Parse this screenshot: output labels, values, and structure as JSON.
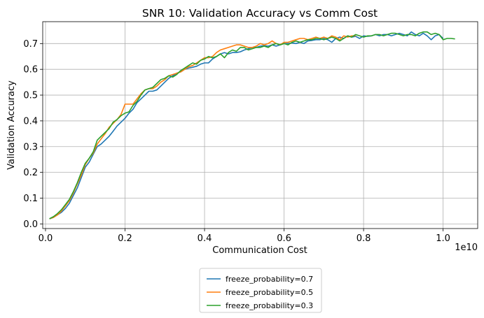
{
  "chart_data": {
    "type": "line",
    "title": "SNR 10: Validation Accuracy vs Comm Cost",
    "xlabel": "Communication Cost",
    "ylabel": "Validation Accuracy",
    "x_offset_label": "1e10",
    "x_scale": 10000000000,
    "xlim": [
      -70000000,
      10870000000
    ],
    "ylim": [
      -0.018,
      0.785
    ],
    "x_ticks": [
      0,
      2000000000,
      4000000000,
      6000000000,
      8000000000,
      10000000000
    ],
    "x_tick_labels": [
      "0.0",
      "0.2",
      "0.4",
      "0.6",
      "0.8",
      "1.0"
    ],
    "y_ticks": [
      0.0,
      0.1,
      0.2,
      0.3,
      0.4,
      0.5,
      0.6,
      0.7
    ],
    "y_tick_labels": [
      "0.0",
      "0.1",
      "0.2",
      "0.3",
      "0.4",
      "0.5",
      "0.6",
      "0.7"
    ],
    "grid": true,
    "legend_position": "below-center",
    "series": [
      {
        "name": "freeze_probability=0.7",
        "color": "#1f77b4",
        "points": [
          [
            100000000,
            0.02
          ],
          [
            200000000,
            0.025
          ],
          [
            300000000,
            0.035
          ],
          [
            400000000,
            0.045
          ],
          [
            500000000,
            0.06
          ],
          [
            600000000,
            0.08
          ],
          [
            700000000,
            0.11
          ],
          [
            800000000,
            0.14
          ],
          [
            900000000,
            0.18
          ],
          [
            1000000000,
            0.22
          ],
          [
            1100000000,
            0.24
          ],
          [
            1200000000,
            0.27
          ],
          [
            1300000000,
            0.3
          ],
          [
            1400000000,
            0.31
          ],
          [
            1500000000,
            0.325
          ],
          [
            1600000000,
            0.34
          ],
          [
            1700000000,
            0.36
          ],
          [
            1800000000,
            0.38
          ],
          [
            1900000000,
            0.395
          ],
          [
            2000000000,
            0.41
          ],
          [
            2100000000,
            0.43
          ],
          [
            2200000000,
            0.445
          ],
          [
            2300000000,
            0.47
          ],
          [
            2400000000,
            0.485
          ],
          [
            2500000000,
            0.5
          ],
          [
            2600000000,
            0.515
          ],
          [
            2700000000,
            0.515
          ],
          [
            2800000000,
            0.52
          ],
          [
            2900000000,
            0.535
          ],
          [
            3000000000,
            0.55
          ],
          [
            3100000000,
            0.565
          ],
          [
            3200000000,
            0.575
          ],
          [
            3300000000,
            0.585
          ],
          [
            3400000000,
            0.59
          ],
          [
            3500000000,
            0.6
          ],
          [
            3600000000,
            0.605
          ],
          [
            3700000000,
            0.608
          ],
          [
            3800000000,
            0.612
          ],
          [
            3900000000,
            0.62
          ],
          [
            4000000000,
            0.625
          ],
          [
            4100000000,
            0.625
          ],
          [
            4200000000,
            0.64
          ],
          [
            4300000000,
            0.65
          ],
          [
            4400000000,
            0.66
          ],
          [
            4500000000,
            0.665
          ],
          [
            4600000000,
            0.66
          ],
          [
            4700000000,
            0.665
          ],
          [
            4800000000,
            0.665
          ],
          [
            4900000000,
            0.668
          ],
          [
            5000000000,
            0.675
          ],
          [
            5100000000,
            0.68
          ],
          [
            5200000000,
            0.685
          ],
          [
            5300000000,
            0.685
          ],
          [
            5400000000,
            0.69
          ],
          [
            5500000000,
            0.692
          ],
          [
            5600000000,
            0.69
          ],
          [
            5700000000,
            0.695
          ],
          [
            5800000000,
            0.69
          ],
          [
            5900000000,
            0.695
          ],
          [
            6000000000,
            0.7
          ],
          [
            6100000000,
            0.7
          ],
          [
            6200000000,
            0.702
          ],
          [
            6300000000,
            0.7
          ],
          [
            6400000000,
            0.705
          ],
          [
            6500000000,
            0.7
          ],
          [
            6600000000,
            0.71
          ],
          [
            6700000000,
            0.712
          ],
          [
            6800000000,
            0.715
          ],
          [
            6900000000,
            0.715
          ],
          [
            7000000000,
            0.72
          ],
          [
            7100000000,
            0.715
          ],
          [
            7200000000,
            0.705
          ],
          [
            7300000000,
            0.72
          ],
          [
            7400000000,
            0.725
          ],
          [
            7500000000,
            0.72
          ],
          [
            7600000000,
            0.73
          ],
          [
            7700000000,
            0.725
          ],
          [
            7800000000,
            0.728
          ],
          [
            7900000000,
            0.72
          ],
          [
            8000000000,
            0.73
          ],
          [
            8100000000,
            0.728
          ],
          [
            8200000000,
            0.73
          ],
          [
            8300000000,
            0.735
          ],
          [
            8400000000,
            0.73
          ],
          [
            8500000000,
            0.735
          ],
          [
            8600000000,
            0.735
          ],
          [
            8700000000,
            0.73
          ],
          [
            8800000000,
            0.735
          ],
          [
            8900000000,
            0.74
          ],
          [
            9000000000,
            0.735
          ],
          [
            9100000000,
            0.73
          ],
          [
            9200000000,
            0.745
          ],
          [
            9300000000,
            0.735
          ],
          [
            9400000000,
            0.73
          ],
          [
            9500000000,
            0.74
          ],
          [
            9600000000,
            0.73
          ],
          [
            9700000000,
            0.715
          ],
          [
            9800000000,
            0.73
          ],
          [
            9900000000,
            0.735
          ],
          [
            10000000000,
            0.72
          ]
        ]
      },
      {
        "name": "freeze_probability=0.5",
        "color": "#ff7f0e",
        "points": [
          [
            100000000,
            0.02
          ],
          [
            200000000,
            0.025
          ],
          [
            300000000,
            0.035
          ],
          [
            400000000,
            0.05
          ],
          [
            500000000,
            0.07
          ],
          [
            600000000,
            0.09
          ],
          [
            700000000,
            0.12
          ],
          [
            800000000,
            0.155
          ],
          [
            900000000,
            0.19
          ],
          [
            1000000000,
            0.23
          ],
          [
            1100000000,
            0.255
          ],
          [
            1200000000,
            0.275
          ],
          [
            1300000000,
            0.31
          ],
          [
            1400000000,
            0.33
          ],
          [
            1500000000,
            0.35
          ],
          [
            1600000000,
            0.375
          ],
          [
            1700000000,
            0.39
          ],
          [
            1800000000,
            0.405
          ],
          [
            1900000000,
            0.425
          ],
          [
            2000000000,
            0.465
          ],
          [
            2100000000,
            0.465
          ],
          [
            2200000000,
            0.465
          ],
          [
            2300000000,
            0.485
          ],
          [
            2400000000,
            0.505
          ],
          [
            2500000000,
            0.52
          ],
          [
            2600000000,
            0.525
          ],
          [
            2700000000,
            0.525
          ],
          [
            2800000000,
            0.535
          ],
          [
            2900000000,
            0.55
          ],
          [
            3000000000,
            0.56
          ],
          [
            3100000000,
            0.575
          ],
          [
            3200000000,
            0.58
          ],
          [
            3300000000,
            0.585
          ],
          [
            3400000000,
            0.59
          ],
          [
            3500000000,
            0.6
          ],
          [
            3600000000,
            0.61
          ],
          [
            3700000000,
            0.615
          ],
          [
            3800000000,
            0.625
          ],
          [
            3900000000,
            0.635
          ],
          [
            4000000000,
            0.645
          ],
          [
            4100000000,
            0.645
          ],
          [
            4200000000,
            0.65
          ],
          [
            4300000000,
            0.665
          ],
          [
            4400000000,
            0.675
          ],
          [
            4500000000,
            0.68
          ],
          [
            4600000000,
            0.685
          ],
          [
            4700000000,
            0.69
          ],
          [
            4800000000,
            0.695
          ],
          [
            4900000000,
            0.695
          ],
          [
            5000000000,
            0.69
          ],
          [
            5100000000,
            0.685
          ],
          [
            5200000000,
            0.685
          ],
          [
            5300000000,
            0.69
          ],
          [
            5400000000,
            0.7
          ],
          [
            5500000000,
            0.695
          ],
          [
            5600000000,
            0.7
          ],
          [
            5700000000,
            0.71
          ],
          [
            5800000000,
            0.7
          ],
          [
            5900000000,
            0.695
          ],
          [
            6000000000,
            0.705
          ],
          [
            6100000000,
            0.705
          ],
          [
            6200000000,
            0.71
          ],
          [
            6300000000,
            0.715
          ],
          [
            6400000000,
            0.72
          ],
          [
            6500000000,
            0.72
          ],
          [
            6600000000,
            0.715
          ],
          [
            6700000000,
            0.72
          ],
          [
            6800000000,
            0.725
          ],
          [
            6900000000,
            0.72
          ],
          [
            7000000000,
            0.725
          ],
          [
            7100000000,
            0.72
          ],
          [
            7200000000,
            0.73
          ],
          [
            7300000000,
            0.725
          ],
          [
            7400000000,
            0.715
          ],
          [
            7500000000,
            0.73
          ],
          [
            7600000000,
            0.725
          ],
          [
            7700000000,
            0.73
          ],
          [
            7800000000,
            0.73
          ]
        ]
      },
      {
        "name": "freeze_probability=0.3",
        "color": "#2ca02c",
        "points": [
          [
            100000000,
            0.02
          ],
          [
            200000000,
            0.028
          ],
          [
            300000000,
            0.04
          ],
          [
            400000000,
            0.055
          ],
          [
            500000000,
            0.075
          ],
          [
            600000000,
            0.095
          ],
          [
            700000000,
            0.125
          ],
          [
            800000000,
            0.16
          ],
          [
            900000000,
            0.2
          ],
          [
            1000000000,
            0.235
          ],
          [
            1100000000,
            0.255
          ],
          [
            1200000000,
            0.28
          ],
          [
            1300000000,
            0.325
          ],
          [
            1400000000,
            0.34
          ],
          [
            1500000000,
            0.355
          ],
          [
            1600000000,
            0.37
          ],
          [
            1700000000,
            0.395
          ],
          [
            1800000000,
            0.405
          ],
          [
            1900000000,
            0.42
          ],
          [
            2000000000,
            0.43
          ],
          [
            2100000000,
            0.435
          ],
          [
            2200000000,
            0.46
          ],
          [
            2300000000,
            0.475
          ],
          [
            2400000000,
            0.5
          ],
          [
            2500000000,
            0.52
          ],
          [
            2600000000,
            0.525
          ],
          [
            2700000000,
            0.53
          ],
          [
            2800000000,
            0.545
          ],
          [
            2900000000,
            0.56
          ],
          [
            3000000000,
            0.565
          ],
          [
            3100000000,
            0.575
          ],
          [
            3200000000,
            0.57
          ],
          [
            3300000000,
            0.58
          ],
          [
            3400000000,
            0.595
          ],
          [
            3500000000,
            0.605
          ],
          [
            3600000000,
            0.615
          ],
          [
            3700000000,
            0.625
          ],
          [
            3800000000,
            0.62
          ],
          [
            3900000000,
            0.635
          ],
          [
            4000000000,
            0.64
          ],
          [
            4100000000,
            0.65
          ],
          [
            4200000000,
            0.645
          ],
          [
            4300000000,
            0.65
          ],
          [
            4400000000,
            0.66
          ],
          [
            4500000000,
            0.645
          ],
          [
            4600000000,
            0.665
          ],
          [
            4700000000,
            0.675
          ],
          [
            4800000000,
            0.67
          ],
          [
            4900000000,
            0.685
          ],
          [
            5000000000,
            0.685
          ],
          [
            5100000000,
            0.675
          ],
          [
            5200000000,
            0.68
          ],
          [
            5300000000,
            0.685
          ],
          [
            5400000000,
            0.685
          ],
          [
            5500000000,
            0.69
          ],
          [
            5600000000,
            0.685
          ],
          [
            5700000000,
            0.695
          ],
          [
            5800000000,
            0.7
          ],
          [
            5900000000,
            0.695
          ],
          [
            6000000000,
            0.7
          ],
          [
            6100000000,
            0.695
          ],
          [
            6200000000,
            0.705
          ],
          [
            6300000000,
            0.71
          ],
          [
            6400000000,
            0.705
          ],
          [
            6500000000,
            0.71
          ],
          [
            6600000000,
            0.715
          ],
          [
            6700000000,
            0.715
          ],
          [
            6800000000,
            0.72
          ],
          [
            6900000000,
            0.72
          ],
          [
            7000000000,
            0.715
          ],
          [
            7100000000,
            0.72
          ],
          [
            7200000000,
            0.725
          ],
          [
            7300000000,
            0.72
          ],
          [
            7400000000,
            0.71
          ],
          [
            7500000000,
            0.72
          ],
          [
            7600000000,
            0.73
          ],
          [
            7700000000,
            0.725
          ],
          [
            7800000000,
            0.735
          ],
          [
            7900000000,
            0.73
          ],
          [
            8000000000,
            0.725
          ],
          [
            8100000000,
            0.73
          ],
          [
            8200000000,
            0.73
          ],
          [
            8300000000,
            0.735
          ],
          [
            8400000000,
            0.735
          ],
          [
            8500000000,
            0.73
          ],
          [
            8600000000,
            0.735
          ],
          [
            8700000000,
            0.74
          ],
          [
            8800000000,
            0.74
          ],
          [
            8900000000,
            0.735
          ],
          [
            9000000000,
            0.73
          ],
          [
            9100000000,
            0.735
          ],
          [
            9200000000,
            0.735
          ],
          [
            9300000000,
            0.73
          ],
          [
            9400000000,
            0.74
          ],
          [
            9500000000,
            0.745
          ],
          [
            9600000000,
            0.745
          ],
          [
            9700000000,
            0.735
          ],
          [
            9800000000,
            0.74
          ],
          [
            9900000000,
            0.735
          ],
          [
            10000000000,
            0.715
          ],
          [
            10100000000,
            0.72
          ],
          [
            10200000000,
            0.72
          ],
          [
            10300000000,
            0.718
          ]
        ]
      }
    ]
  }
}
